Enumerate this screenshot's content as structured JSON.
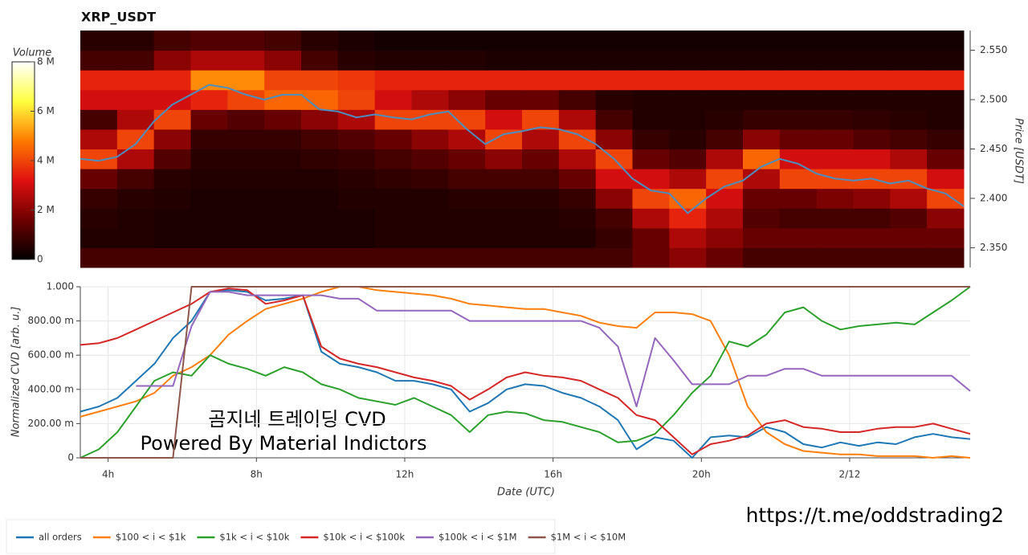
{
  "chart_data": [
    {
      "type": "heatmap",
      "title": "XRP_USDT",
      "xlim": [
        3.25,
        27.25
      ],
      "ylim": [
        2.33,
        2.57
      ],
      "yticks": [
        {
          "value": 2.35,
          "label": "2.350"
        },
        {
          "value": 2.4,
          "label": "2.400"
        },
        {
          "value": 2.45,
          "label": "2.450"
        },
        {
          "value": 2.5,
          "label": "2.500"
        },
        {
          "value": 2.55,
          "label": "2.550"
        }
      ],
      "y_label": "Price [USDT]",
      "x_bins": [
        3.25,
        4.25,
        5.25,
        6.25,
        7.25,
        8.25,
        9.25,
        10.25,
        11.25,
        12.25,
        13.25,
        14.25,
        15.25,
        16.25,
        17.25,
        18.25,
        19.25,
        20.25,
        21.25,
        22.25,
        23.25,
        24.25,
        25.25,
        26.25,
        27.25
      ],
      "y_bins": [
        2.33,
        2.35,
        2.37,
        2.39,
        2.41,
        2.43,
        2.45,
        2.47,
        2.49,
        2.51,
        2.53,
        2.55,
        2.57
      ],
      "z": [
        [
          1,
          1,
          1,
          1,
          1,
          1,
          1,
          1,
          1,
          1,
          1,
          1,
          1,
          1,
          1,
          1.5,
          2,
          1.5,
          1,
          1,
          1,
          1,
          1,
          1
        ],
        [
          0.5,
          0.5,
          0.4,
          0.4,
          0.4,
          0.4,
          0.4,
          0.4,
          0.5,
          0.5,
          0.5,
          0.5,
          0.5,
          0.5,
          0.8,
          1.5,
          2.5,
          2.0,
          1.5,
          1.5,
          1.5,
          1.5,
          1.5,
          1.5
        ],
        [
          0.6,
          0.5,
          0.4,
          0.4,
          0.4,
          0.4,
          0.4,
          0.4,
          0.5,
          0.5,
          0.5,
          0.5,
          0.5,
          0.6,
          1.0,
          2.5,
          3.5,
          2.5,
          1.2,
          1.0,
          1.0,
          1.0,
          1.2,
          2.0
        ],
        [
          0.8,
          0.6,
          0.5,
          0.4,
          0.4,
          0.4,
          0.4,
          0.5,
          0.5,
          0.5,
          0.6,
          0.6,
          0.6,
          0.8,
          2.0,
          4.0,
          4.5,
          3.0,
          1.5,
          1.5,
          1.8,
          2.0,
          2.5,
          4.0
        ],
        [
          1.5,
          1.0,
          0.6,
          0.5,
          0.5,
          0.5,
          0.5,
          0.6,
          0.7,
          0.8,
          1.0,
          1.0,
          1.0,
          1.5,
          3.0,
          3.0,
          2.5,
          4.0,
          2.5,
          4.0,
          4.0,
          4.0,
          4.0,
          3.0
        ],
        [
          4.0,
          2.5,
          1.2,
          0.6,
          0.6,
          0.6,
          0.7,
          0.8,
          1.0,
          1.2,
          1.5,
          2.0,
          1.5,
          2.5,
          4.0,
          1.5,
          1.2,
          2.5,
          4.5,
          3.0,
          3.0,
          3.0,
          2.5,
          1.5
        ],
        [
          2.5,
          4.0,
          2.0,
          0.8,
          0.8,
          0.8,
          1.0,
          1.2,
          1.5,
          2.0,
          2.5,
          4.0,
          2.5,
          4.0,
          2.0,
          0.8,
          0.6,
          1.0,
          2.0,
          1.5,
          1.5,
          1.2,
          1.0,
          0.8
        ],
        [
          1.0,
          2.5,
          4.0,
          1.5,
          1.2,
          1.5,
          2.0,
          2.5,
          4.0,
          4.0,
          4.0,
          3.0,
          4.0,
          2.5,
          1.0,
          0.5,
          0.5,
          0.6,
          0.8,
          0.8,
          0.8,
          0.7,
          0.6,
          0.5
        ],
        [
          3.0,
          3.0,
          3.0,
          3.5,
          4.0,
          4.5,
          4.5,
          4.0,
          3.0,
          2.5,
          2.0,
          1.5,
          1.5,
          1.0,
          0.6,
          0.5,
          0.5,
          0.5,
          0.5,
          0.5,
          0.5,
          0.5,
          0.5,
          0.5
        ],
        [
          3.5,
          3.5,
          3.5,
          5.0,
          5.0,
          4.0,
          4.0,
          3.8,
          3.5,
          3.5,
          3.5,
          3.5,
          3.5,
          3.5,
          3.5,
          3.5,
          3.5,
          3.5,
          3.5,
          3.5,
          3.5,
          3.5,
          3.5,
          3.5
        ],
        [
          1.0,
          1.0,
          2.0,
          2.5,
          2.5,
          2.0,
          1.0,
          0.6,
          0.5,
          0.5,
          0.5,
          0.4,
          0.4,
          0.4,
          0.4,
          0.4,
          0.4,
          0.4,
          0.4,
          0.4,
          0.4,
          0.4,
          0.4,
          0.4
        ],
        [
          0.6,
          0.6,
          1.0,
          1.2,
          1.2,
          1.0,
          0.6,
          0.4,
          0.3,
          0.3,
          0.3,
          0.3,
          0.3,
          0.3,
          0.3,
          0.3,
          0.3,
          0.3,
          0.3,
          0.3,
          0.3,
          0.3,
          0.3,
          0.3
        ]
      ],
      "zlim": [
        0,
        8
      ],
      "zticks": [
        0,
        {
          "value": 2,
          "label": "2 M"
        },
        {
          "value": 4,
          "label": "4 M"
        },
        {
          "value": 6,
          "label": "6 M"
        },
        {
          "value": 8,
          "label": "8 M"
        }
      ],
      "colorbar_label": "Volume",
      "colormap": [
        "#000000",
        "#6e0000",
        "#e01010",
        "#ff7a00",
        "#ffff40",
        "#ffffff"
      ],
      "line": {
        "color": "#4a8fc0",
        "x": [
          3.25,
          3.75,
          4.25,
          4.75,
          5.25,
          5.75,
          6.25,
          6.75,
          7.25,
          7.75,
          8.25,
          8.75,
          9.25,
          9.75,
          10.25,
          10.75,
          11.25,
          11.75,
          12.25,
          12.75,
          13.25,
          13.75,
          14.25,
          14.75,
          15.25,
          15.75,
          16.25,
          16.75,
          17.25,
          17.75,
          18.25,
          18.75,
          19.25,
          19.75,
          20.25,
          20.75,
          21.25,
          21.75,
          22.25,
          22.75,
          23.25,
          23.75,
          24.25,
          24.75,
          25.25,
          25.75,
          26.25,
          26.75,
          27.25
        ],
        "values": [
          2.44,
          2.438,
          2.442,
          2.455,
          2.478,
          2.495,
          2.505,
          2.515,
          2.512,
          2.505,
          2.5,
          2.505,
          2.505,
          2.49,
          2.488,
          2.482,
          2.485,
          2.482,
          2.48,
          2.485,
          2.488,
          2.47,
          2.455,
          2.465,
          2.468,
          2.472,
          2.47,
          2.465,
          2.455,
          2.44,
          2.42,
          2.408,
          2.405,
          2.385,
          2.4,
          2.412,
          2.418,
          2.432,
          2.44,
          2.435,
          2.425,
          2.42,
          2.418,
          2.42,
          2.415,
          2.418,
          2.41,
          2.405,
          2.392
        ]
      }
    },
    {
      "type": "line",
      "xlim": [
        3.25,
        27.25
      ],
      "ylim": [
        0,
        1
      ],
      "xticks": [
        {
          "value": 4,
          "label": "4h"
        },
        {
          "value": 8,
          "label": "8h"
        },
        {
          "value": 12,
          "label": "12h"
        },
        {
          "value": 16,
          "label": "16h"
        },
        {
          "value": 20,
          "label": "20h"
        },
        {
          "value": 24,
          "label": "2/12"
        }
      ],
      "yticks": [
        0,
        {
          "value": 0.2,
          "label": "200.00 m"
        },
        {
          "value": 0.4,
          "label": "400.00 m"
        },
        {
          "value": 0.6,
          "label": "600.00 m"
        },
        {
          "value": 0.8,
          "label": "800.00 m"
        },
        {
          "value": 1,
          "label": "1.000"
        }
      ],
      "x_label": "Date (UTC)",
      "y_label": "Normalized CVD [arb. u.]",
      "grid": true,
      "legend": "bottom-left",
      "x": [
        3.25,
        3.75,
        4.25,
        4.75,
        5.25,
        5.75,
        6.25,
        6.75,
        7.25,
        7.75,
        8.25,
        8.75,
        9.25,
        9.75,
        10.25,
        10.75,
        11.25,
        11.75,
        12.25,
        12.75,
        13.25,
        13.75,
        14.25,
        14.75,
        15.25,
        15.75,
        16.25,
        16.75,
        17.25,
        17.75,
        18.25,
        18.75,
        19.25,
        19.75,
        20.25,
        20.75,
        21.25,
        21.75,
        22.25,
        22.75,
        23.25,
        23.75,
        24.25,
        24.75,
        25.25,
        25.75,
        26.25,
        26.75,
        27.25
      ],
      "series": [
        {
          "name": "all orders",
          "color": "#1f77b4",
          "values": [
            0.27,
            0.3,
            0.35,
            0.45,
            0.55,
            0.7,
            0.8,
            0.97,
            0.98,
            0.97,
            0.92,
            0.93,
            0.95,
            0.62,
            0.55,
            0.53,
            0.5,
            0.45,
            0.45,
            0.43,
            0.4,
            0.27,
            0.32,
            0.4,
            0.43,
            0.42,
            0.38,
            0.35,
            0.3,
            0.22,
            0.05,
            0.12,
            0.1,
            0.0,
            0.12,
            0.13,
            0.12,
            0.18,
            0.15,
            0.08,
            0.06,
            0.09,
            0.07,
            0.09,
            0.08,
            0.12,
            0.14,
            0.12,
            0.11
          ]
        },
        {
          "name": "$100 < i < $1k",
          "color": "#ff7f0e",
          "values": [
            0.24,
            0.27,
            0.3,
            0.33,
            0.38,
            0.48,
            0.53,
            0.6,
            0.72,
            0.8,
            0.87,
            0.9,
            0.93,
            0.97,
            1.0,
            1.0,
            0.98,
            0.97,
            0.96,
            0.95,
            0.93,
            0.9,
            0.89,
            0.88,
            0.87,
            0.87,
            0.85,
            0.83,
            0.79,
            0.77,
            0.76,
            0.85,
            0.85,
            0.84,
            0.8,
            0.6,
            0.3,
            0.15,
            0.08,
            0.04,
            0.03,
            0.02,
            0.02,
            0.01,
            0.01,
            0.01,
            0.0,
            0.01,
            0.0
          ]
        },
        {
          "name": "$1k < i < $10k",
          "color": "#2ca02c",
          "values": [
            0.0,
            0.05,
            0.15,
            0.3,
            0.45,
            0.5,
            0.48,
            0.6,
            0.55,
            0.52,
            0.48,
            0.53,
            0.5,
            0.43,
            0.4,
            0.35,
            0.33,
            0.31,
            0.35,
            0.3,
            0.25,
            0.15,
            0.25,
            0.27,
            0.26,
            0.22,
            0.21,
            0.18,
            0.15,
            0.09,
            0.1,
            0.14,
            0.25,
            0.38,
            0.48,
            0.68,
            0.65,
            0.72,
            0.85,
            0.88,
            0.8,
            0.75,
            0.77,
            0.78,
            0.79,
            0.78,
            0.85,
            0.92,
            1.0
          ]
        },
        {
          "name": "$10k < i < $100k",
          "color": "#d62728",
          "values": [
            0.66,
            0.67,
            0.7,
            0.75,
            0.8,
            0.85,
            0.9,
            0.97,
            0.99,
            0.98,
            0.9,
            0.92,
            0.95,
            0.65,
            0.58,
            0.55,
            0.53,
            0.5,
            0.47,
            0.45,
            0.42,
            0.34,
            0.4,
            0.47,
            0.5,
            0.48,
            0.47,
            0.45,
            0.4,
            0.35,
            0.25,
            0.22,
            0.12,
            0.02,
            0.08,
            0.1,
            0.13,
            0.2,
            0.22,
            0.18,
            0.17,
            0.15,
            0.15,
            0.17,
            0.18,
            0.18,
            0.2,
            0.17,
            0.14
          ]
        },
        {
          "name": "$100k < i < $1M",
          "color": "#9467bd",
          "values": [
            null,
            null,
            null,
            0.42,
            0.42,
            0.42,
            0.77,
            0.97,
            0.97,
            0.95,
            0.95,
            0.95,
            0.95,
            0.95,
            0.93,
            0.93,
            0.86,
            0.86,
            0.86,
            0.86,
            0.86,
            0.8,
            0.8,
            0.8,
            0.8,
            0.8,
            0.8,
            0.8,
            0.76,
            0.65,
            0.3,
            0.7,
            0.57,
            0.43,
            0.43,
            0.43,
            0.48,
            0.48,
            0.52,
            0.52,
            0.48,
            0.48,
            0.48,
            0.48,
            0.48,
            0.48,
            0.48,
            0.48,
            0.39
          ]
        },
        {
          "name": "$1M < i < $10M",
          "color": "#8c564b",
          "values": [
            0,
            0,
            0,
            0,
            0,
            0,
            1,
            1,
            1,
            1,
            1,
            1,
            1,
            1,
            1,
            1,
            1,
            1,
            1,
            1,
            1,
            1,
            1,
            1,
            1,
            1,
            1,
            1,
            1,
            1,
            1,
            1,
            1,
            1,
            1,
            1,
            1,
            1,
            1,
            1,
            1,
            1,
            1,
            1,
            1,
            1,
            1,
            1,
            1
          ]
        }
      ]
    }
  ],
  "watermark": {
    "line1": "곰지네 트레이딩 CVD",
    "line2": "Powered By Material Indictors"
  },
  "link": "https://t.me/oddstrading2"
}
